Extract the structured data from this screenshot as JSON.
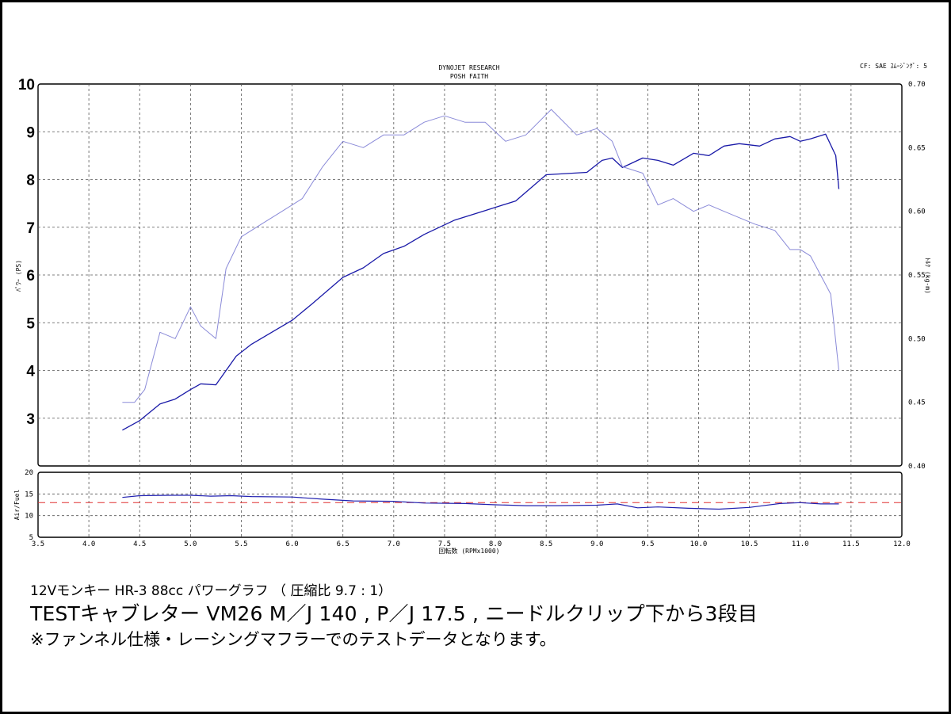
{
  "header": {
    "title_line1": "DYNOJET RESEARCH",
    "title_line2": "POSH FAITH",
    "cf_label": "CF: SAE  ｽﾑｰｼﾞﾝｸﾞ: 5"
  },
  "captions": {
    "line1": "12Vモンキー HR-3 88cc パワーグラフ （ 圧縮比  9.7 : 1）",
    "line2": "TESTキャブレター  VM26  M／J 140 , P／J 17.5 , ニードルクリップ下から3段目",
    "line3": "※ファンネル仕様・レーシングマフラーでのテストデータとなります。"
  },
  "colors": {
    "power": "#1a1aa8",
    "torque": "#8a8ad8",
    "afr": "#2020b0",
    "afr_target": "#e03030",
    "grid": "#555555",
    "frame": "#000000"
  },
  "chart_data": [
    {
      "type": "line",
      "xlabel": "回転数 (RPMx1000)",
      "ylabel_left": "ﾊﾟﾜｰ (PS)",
      "ylabel_right": "ﾄﾙｸ (kg-m)",
      "xlim": [
        3.5,
        12.0
      ],
      "ylim_left": [
        2,
        10
      ],
      "ylim_right": [
        0.4,
        0.7
      ],
      "left_ticks": [
        "3",
        "4",
        "5",
        "6",
        "7",
        "8",
        "9",
        "10"
      ],
      "right_ticks": [
        "0.40",
        "0.45",
        "0.50",
        "0.55",
        "0.60",
        "0.65",
        "0.70"
      ],
      "grid": true,
      "series": [
        {
          "axis": "left",
          "color": "#1a1aa8",
          "x": [
            4.33,
            4.5,
            4.7,
            4.85,
            5.0,
            5.1,
            5.25,
            5.45,
            5.6,
            5.8,
            6.0,
            6.2,
            6.5,
            6.7,
            6.9,
            7.1,
            7.3,
            7.6,
            7.9,
            8.2,
            8.5,
            8.9,
            9.05,
            9.15,
            9.25,
            9.45,
            9.6,
            9.75,
            9.95,
            10.1,
            10.25,
            10.4,
            10.6,
            10.75,
            10.9,
            11.0,
            11.1,
            11.25,
            11.35,
            11.38
          ],
          "y": [
            2.75,
            2.95,
            3.3,
            3.4,
            3.6,
            3.72,
            3.7,
            4.3,
            4.55,
            4.8,
            5.05,
            5.4,
            5.95,
            6.15,
            6.45,
            6.6,
            6.85,
            7.15,
            7.35,
            7.55,
            8.1,
            8.15,
            8.4,
            8.45,
            8.25,
            8.45,
            8.4,
            8.3,
            8.55,
            8.5,
            8.7,
            8.75,
            8.7,
            8.85,
            8.9,
            8.8,
            8.85,
            8.95,
            8.5,
            7.8
          ]
        },
        {
          "axis": "right",
          "color": "#8a8ad8",
          "x": [
            4.33,
            4.45,
            4.55,
            4.7,
            4.85,
            5.0,
            5.1,
            5.25,
            5.35,
            5.5,
            5.7,
            5.9,
            6.1,
            6.3,
            6.5,
            6.7,
            6.9,
            7.1,
            7.3,
            7.5,
            7.7,
            7.9,
            8.1,
            8.3,
            8.55,
            8.8,
            9.0,
            9.15,
            9.25,
            9.45,
            9.6,
            9.75,
            9.95,
            10.1,
            10.25,
            10.4,
            10.55,
            10.75,
            10.9,
            11.0,
            11.1,
            11.2,
            11.3,
            11.38
          ],
          "y": [
            0.45,
            0.45,
            0.46,
            0.505,
            0.5,
            0.525,
            0.51,
            0.5,
            0.555,
            0.58,
            0.59,
            0.6,
            0.61,
            0.635,
            0.655,
            0.65,
            0.66,
            0.66,
            0.67,
            0.675,
            0.67,
            0.67,
            0.655,
            0.66,
            0.68,
            0.66,
            0.665,
            0.655,
            0.635,
            0.63,
            0.605,
            0.61,
            0.6,
            0.605,
            0.6,
            0.595,
            0.59,
            0.585,
            0.57,
            0.57,
            0.565,
            0.55,
            0.535,
            0.475
          ]
        }
      ]
    },
    {
      "type": "line",
      "ylabel": "Air/Fuel",
      "xlim": [
        3.5,
        12.0
      ],
      "ylim": [
        5,
        20
      ],
      "y_ticks": [
        "5",
        "10",
        "15",
        "20"
      ],
      "x_ticks": [
        "3.5",
        "4.0",
        "4.5",
        "5.0",
        "5.5",
        "6.0",
        "6.5",
        "7.0",
        "7.5",
        "8.0",
        "8.5",
        "9.0",
        "9.5",
        "10.0",
        "10.5",
        "11.0",
        "11.5",
        "12.0"
      ],
      "target_afr": 13.0,
      "series": [
        {
          "color": "#2020b0",
          "x": [
            4.33,
            4.5,
            4.8,
            5.0,
            5.2,
            5.4,
            5.6,
            6.0,
            6.3,
            6.6,
            7.0,
            7.3,
            7.7,
            8.0,
            8.3,
            8.6,
            9.0,
            9.2,
            9.4,
            9.6,
            9.9,
            10.2,
            10.5,
            10.8,
            11.0,
            11.2,
            11.38
          ],
          "y": [
            14.2,
            14.6,
            14.7,
            14.7,
            14.5,
            14.6,
            14.4,
            14.3,
            13.8,
            13.4,
            13.3,
            12.9,
            12.8,
            12.5,
            12.3,
            12.3,
            12.4,
            12.7,
            11.8,
            12.0,
            11.7,
            11.5,
            11.9,
            12.8,
            13.0,
            12.7,
            12.7
          ]
        }
      ]
    }
  ]
}
